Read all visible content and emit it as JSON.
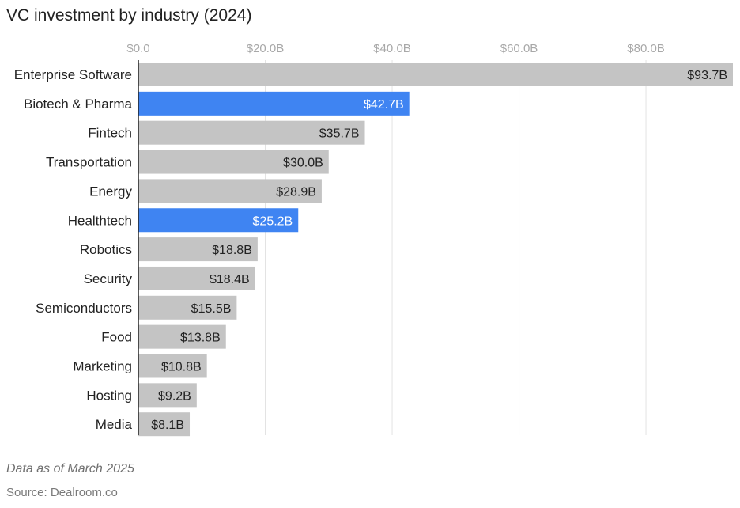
{
  "chart_data": {
    "type": "bar",
    "orientation": "horizontal",
    "title": "VC investment by industry (2024)",
    "categories": [
      "Enterprise Software",
      "Biotech & Pharma",
      "Fintech",
      "Transportation",
      "Energy",
      "Healthtech",
      "Robotics",
      "Security",
      "Semiconductors",
      "Food",
      "Marketing",
      "Hosting",
      "Media"
    ],
    "values": [
      93.7,
      42.7,
      35.7,
      30.0,
      28.9,
      25.2,
      18.8,
      18.4,
      15.5,
      13.8,
      10.8,
      9.2,
      8.1
    ],
    "value_labels": [
      "$93.7B",
      "$42.7B",
      "$35.7B",
      "$30.0B",
      "$28.9B",
      "$25.2B",
      "$18.8B",
      "$18.4B",
      "$15.5B",
      "$13.8B",
      "$10.8B",
      "$9.2B",
      "$8.1B"
    ],
    "highlighted": [
      "Biotech & Pharma",
      "Healthtech"
    ],
    "x_ticks": [
      0,
      20,
      40,
      60,
      80
    ],
    "x_tick_labels": [
      "$0.0",
      "$20.0B",
      "$40.0B",
      "$60.0B",
      "$80.0B"
    ],
    "xlim": [
      0,
      93.7
    ],
    "axis_position": "top",
    "grid": true,
    "xlabel": "",
    "ylabel": ""
  },
  "colors": {
    "bar_default": "#c4c4c4",
    "bar_highlight": "#3f84f2",
    "label_on_default": "#222222",
    "label_on_highlight": "#ffffff",
    "grid": "#e3e3e3",
    "axis": "#222222"
  },
  "notes": {
    "data_as_of": "Data as of March 2025",
    "source": "Source: Dealroom.co"
  }
}
